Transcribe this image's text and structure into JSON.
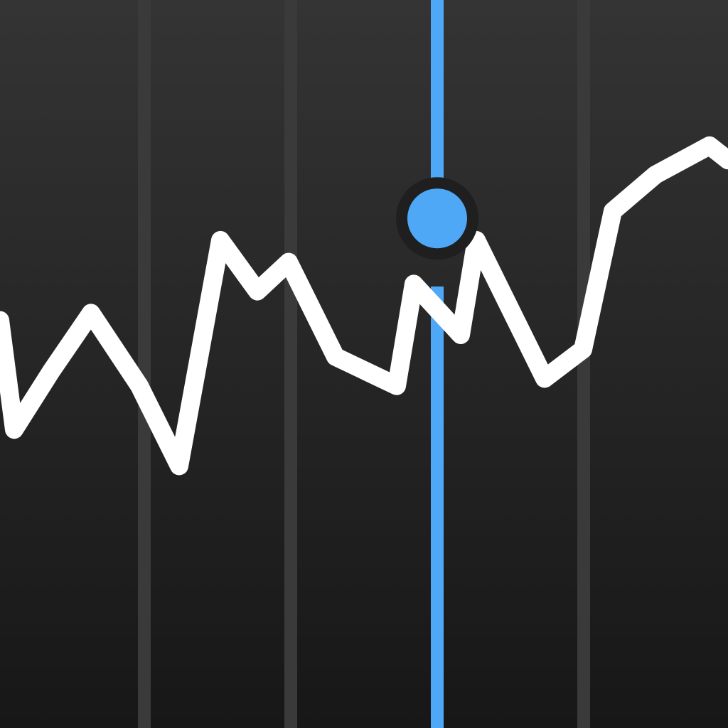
{
  "icon": {
    "semantic": "stocks-app-icon",
    "colors": {
      "background_top": "#343434",
      "background_bottom": "#171717",
      "gridline": "#3a3a3a",
      "line": "#ffffff",
      "cursor": "#4ea8f5",
      "marker": "#4ea8f5"
    },
    "graph_levels": [
      0.56,
      0.41,
      0.49,
      0.57,
      0.47,
      0.36,
      0.67,
      0.6,
      0.64,
      0.51,
      0.47,
      0.61,
      0.54,
      0.67,
      0.48,
      0.52,
      0.71,
      0.76,
      0.8,
      0.78
    ],
    "cursor_level": 0.7,
    "gridline_count": 4
  }
}
